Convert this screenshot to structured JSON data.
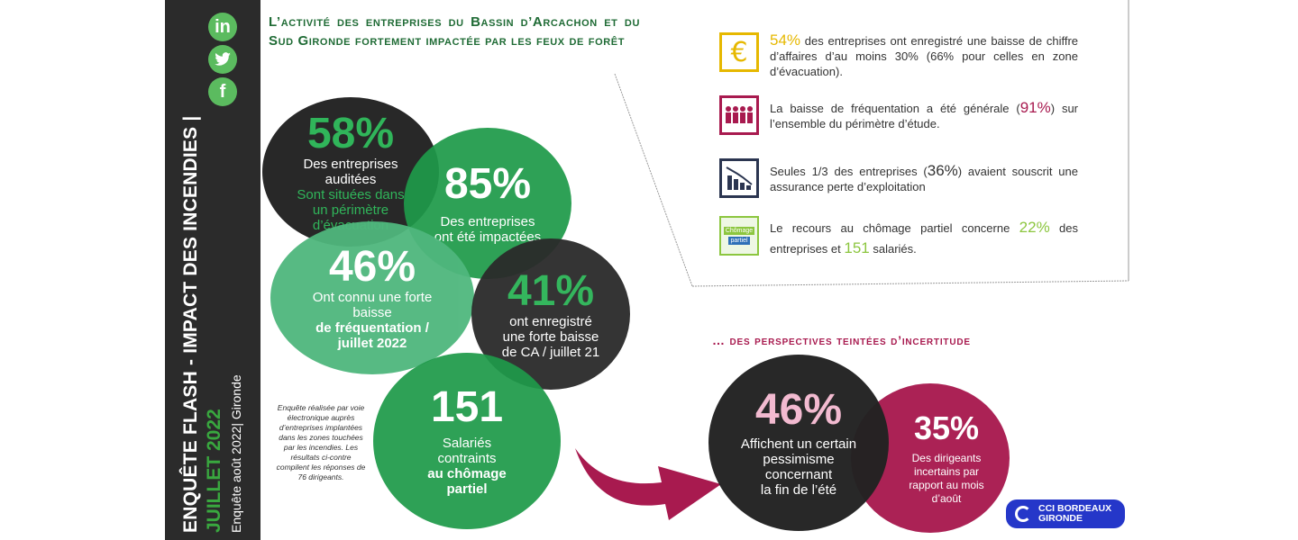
{
  "sidebar": {
    "title": "ENQUÊTE FLASH - IMPACT DES INCENDIES |",
    "date": "JUILLET 2022",
    "source": "Enquête août 2022| Gironde",
    "social": [
      "in",
      "t",
      "f"
    ]
  },
  "title": "L’activité des entreprises du Bassin d’Arcachon et du Sud Gironde fortement impactée par les feux de forêt",
  "circles": {
    "c58": {
      "value": "58%",
      "line1": "Des entreprises",
      "line2": "auditées",
      "line3": "Sont situées dans",
      "line4": "un périmètre",
      "line5": "d’évacuation"
    },
    "c85": {
      "value": "85%",
      "line1": "Des entreprises",
      "line2": "ont été impactées"
    },
    "c46": {
      "value": "46%",
      "line1": "Ont connu une forte",
      "line2": "baisse",
      "line3": "de fréquentation /",
      "line4": "juillet 2022"
    },
    "c41": {
      "value": "41%",
      "line1": "ont enregistré",
      "line2": "une forte baisse",
      "line3": "de CA / juillet 21"
    },
    "c151": {
      "value": "151",
      "line1": "Salariés",
      "line2": "contraints",
      "line3": "au chômage",
      "line4": "partiel"
    }
  },
  "note": "Enquête réalisée par voie électronique auprès d’entreprises implantées dans les zones touchées par les incendies. Les résultats ci-contre compilent les réponses de 76 dirigeants.",
  "stats": [
    {
      "icon": "euro-icon",
      "highlight": "54%",
      "text": " des entreprises ont enregistré une baisse de chiffre d’affaires d’au moins 30% (66% pour celles en zone d’évacuation)."
    },
    {
      "icon": "people-icon",
      "pre": "La baisse de fréquentation a été générale (",
      "highlight": "91%",
      "post": ") sur l’ensemble du périmètre d’étude."
    },
    {
      "icon": "chart-down-icon",
      "pre": "Seules 1/3 des entreprises (",
      "highlight": "36%",
      "post": ") avaient souscrit une assurance perte d’exploitation"
    },
    {
      "icon": "chomage-icon",
      "icon_label1": "Chômage",
      "icon_label2": "partiel",
      "pre": "Le recours au chômage partiel concerne ",
      "highlight": "22%",
      "mid": " des entreprises et ",
      "highlight2": "151",
      "post": " salariés."
    }
  ],
  "perspectives": {
    "title": "… des perspectives teintées d’incertitude",
    "c46": {
      "value": "46%",
      "line1": "Affichent un certain",
      "line2": "pessimisme",
      "line3": "concernant",
      "line4": "la fin de l’été"
    },
    "c35": {
      "value": "35%",
      "line1": "Des dirigeants",
      "line2": "incertains par",
      "line3": "rapport au mois",
      "line4": "d’août"
    }
  },
  "logo": {
    "line1": "CCI BORDEAUX",
    "line2": "GIRONDE"
  },
  "colors": {
    "green": "#1f9a4a",
    "light_green": "#4fb77d",
    "wine": "#a81a4f",
    "yellow": "#e6b800",
    "dark": "#222222"
  }
}
